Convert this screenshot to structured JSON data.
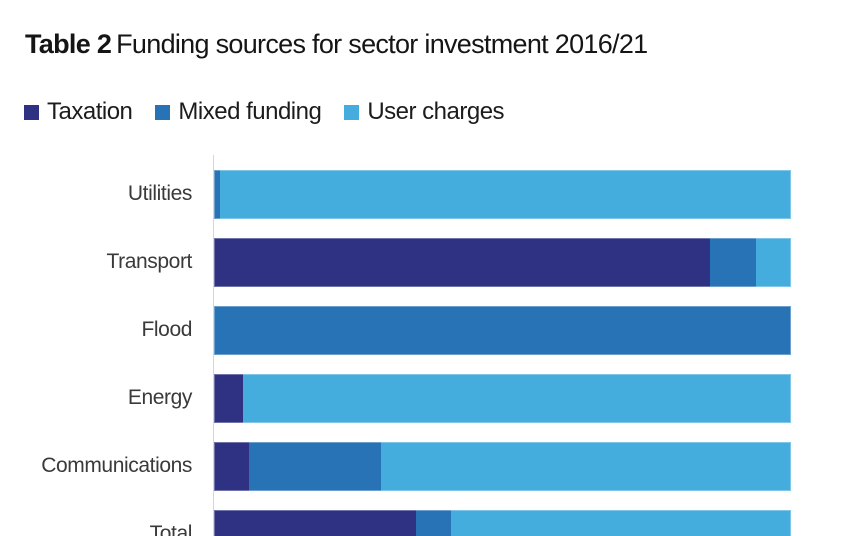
{
  "title": {
    "prefix": "Table 2",
    "text": "Funding sources for sector investment 2016/21"
  },
  "colors": {
    "taxation": "#2F3183",
    "mixed_funding": "#2873B6",
    "user_charges": "#45ACDE",
    "axis_line": "#D7D7D7",
    "title_text": "#151515",
    "category_label_text": "#3A3A3A"
  },
  "chart_data": {
    "type": "bar",
    "orientation": "horizontal",
    "stacked": true,
    "unit": "percent",
    "title": "Table 2 Funding sources for sector investment 2016/21",
    "categories": [
      "Utilities",
      "Transport",
      "Flood",
      "Energy",
      "Communications",
      "Total"
    ],
    "series": [
      {
        "name": "Taxation",
        "color": "#2F3183",
        "values": [
          0,
          86,
          0,
          5,
          6,
          35
        ]
      },
      {
        "name": "Mixed funding",
        "color": "#2873B6",
        "values": [
          1,
          8,
          100,
          0,
          23,
          6
        ]
      },
      {
        "name": "User charges",
        "color": "#45ACDE",
        "values": [
          99,
          6,
          0,
          95,
          71,
          59
        ]
      }
    ],
    "xlim": [
      0,
      100
    ],
    "legend_position": "top",
    "grid": false,
    "axis_line": true,
    "notes": "Last row (Total) is clipped by the bottom edge of the viewport"
  }
}
